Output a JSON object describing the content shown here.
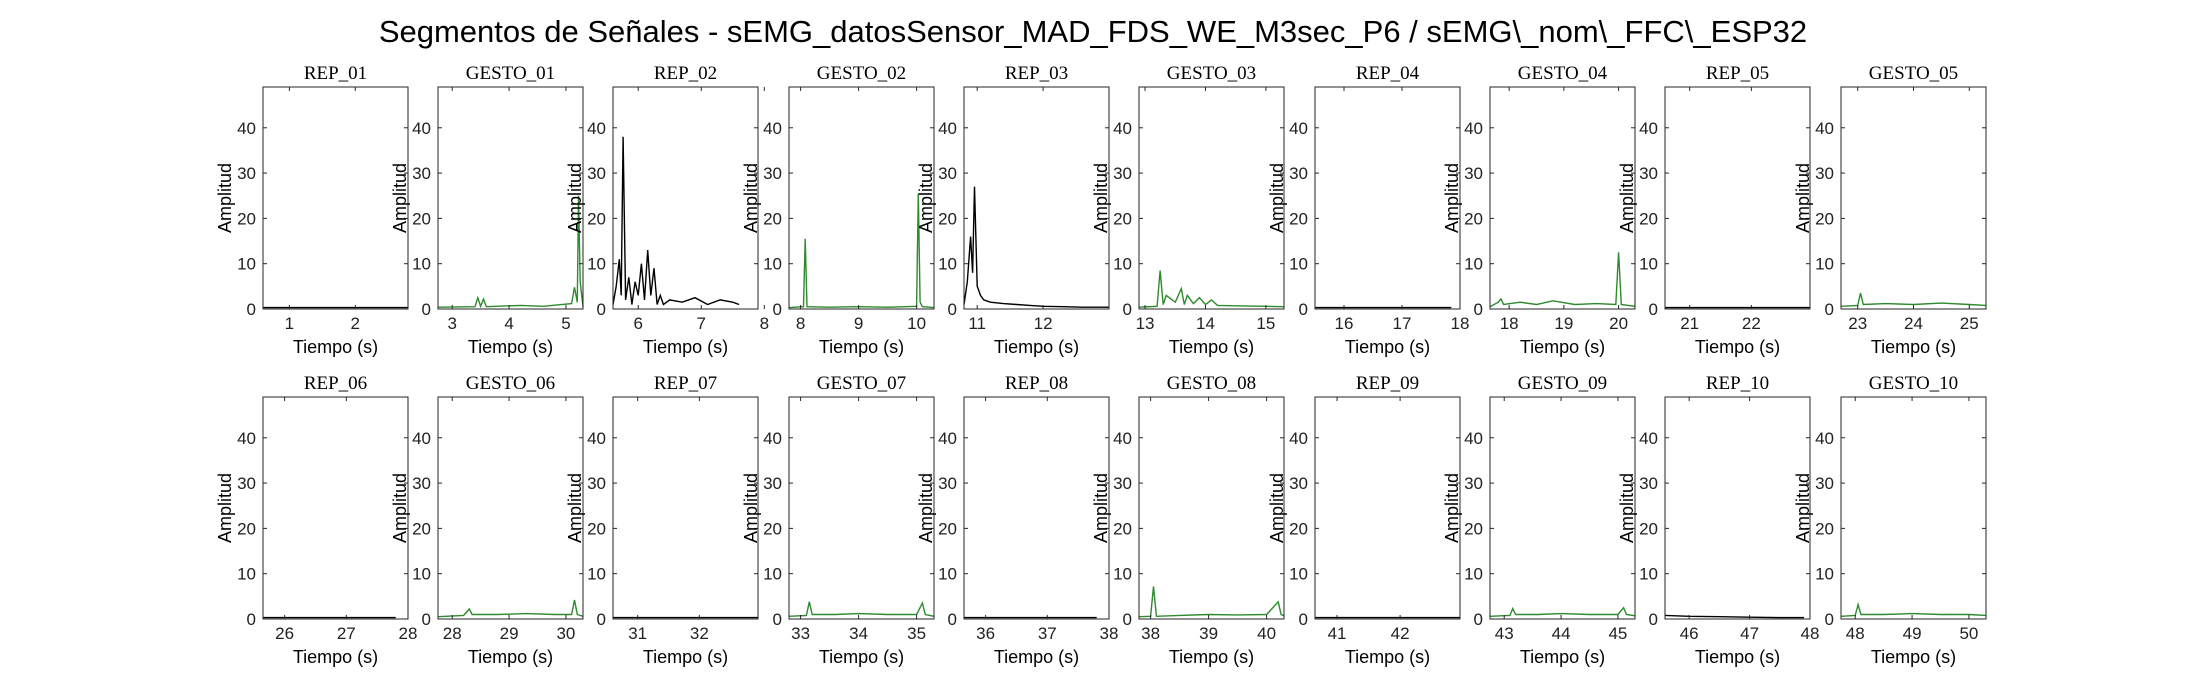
{
  "figure": {
    "title": "Segmentos de Señales - sEMG_datosSensor_MAD_FDS_WE_M3sec_P6 / sEMG\\_nom\\_FFC\\_ESP32"
  },
  "colors": {
    "rep": "#000000",
    "gesto": "#2e8b2e",
    "axis": "#262626"
  },
  "chart_data": [
    {
      "type": "line",
      "title": "REP_01",
      "xlabel": "Tiempo (s)",
      "ylabel": "Amplitud",
      "xlim": [
        0.6,
        2.8
      ],
      "ylim": [
        0,
        49
      ],
      "xticks": [
        1,
        2
      ],
      "yticks": [
        0,
        10,
        20,
        30,
        40
      ],
      "color": "rep",
      "series": [
        {
          "x": [
            0.6,
            2.8
          ],
          "y": [
            0.3,
            0.3
          ]
        }
      ]
    },
    {
      "type": "line",
      "title": "GESTO_01",
      "xlabel": "Tiempo (s)",
      "ylabel": "Amplitud",
      "xlim": [
        2.75,
        5.3
      ],
      "ylim": [
        0,
        49
      ],
      "xticks": [
        3,
        4,
        5
      ],
      "yticks": [
        0,
        10,
        20,
        30,
        40
      ],
      "color": "gesto",
      "series": [
        {
          "x": [
            2.75,
            3.4,
            3.45,
            3.5,
            3.55,
            3.6,
            4.2,
            4.6,
            5.1,
            5.15,
            5.2,
            5.22,
            5.25,
            5.3
          ],
          "y": [
            0.4,
            0.5,
            2.5,
            0.6,
            2.2,
            0.5,
            0.8,
            0.6,
            1.2,
            4.8,
            1.5,
            25,
            6,
            0.5
          ]
        }
      ]
    },
    {
      "type": "line",
      "title": "REP_02",
      "xlabel": "Tiempo (s)",
      "ylabel": "Amplitud",
      "xlim": [
        5.6,
        7.9
      ],
      "ylim": [
        0,
        49
      ],
      "xticks": [
        6,
        7,
        8
      ],
      "yticks": [
        0,
        10,
        20,
        30,
        40
      ],
      "color": "rep",
      "series": [
        {
          "x": [
            5.6,
            5.65,
            5.7,
            5.73,
            5.76,
            5.8,
            5.85,
            5.9,
            5.95,
            6.0,
            6.05,
            6.1,
            6.15,
            6.2,
            6.25,
            6.3,
            6.35,
            6.4,
            6.5,
            6.7,
            6.9,
            7.1,
            7.3,
            7.5,
            7.6
          ],
          "y": [
            1,
            5,
            11,
            3,
            38,
            2,
            7,
            1,
            6,
            3,
            10,
            2,
            13,
            3,
            9,
            1,
            3,
            1,
            2,
            1.5,
            2.5,
            1,
            2,
            1.5,
            1
          ]
        }
      ]
    },
    {
      "type": "line",
      "title": "GESTO_02",
      "xlabel": "Tiempo (s)",
      "ylabel": "Amplitud",
      "xlim": [
        7.8,
        10.3
      ],
      "ylim": [
        0,
        49
      ],
      "xticks": [
        8,
        9,
        10
      ],
      "yticks": [
        0,
        10,
        20,
        30,
        40
      ],
      "color": "gesto",
      "series": [
        {
          "x": [
            7.8,
            8.05,
            8.08,
            8.11,
            8.5,
            9.0,
            9.5,
            10.0,
            10.03,
            10.06,
            10.1,
            10.3
          ],
          "y": [
            0.3,
            0.5,
            15.5,
            0.5,
            0.4,
            0.5,
            0.4,
            0.6,
            25.5,
            1.5,
            0.5,
            0.3
          ]
        }
      ]
    },
    {
      "type": "line",
      "title": "REP_03",
      "xlabel": "Tiempo (s)",
      "ylabel": "Amplitud",
      "xlim": [
        10.8,
        13.0
      ],
      "ylim": [
        0,
        49
      ],
      "xticks": [
        11,
        12
      ],
      "yticks": [
        0,
        10,
        20,
        30,
        40
      ],
      "color": "rep",
      "series": [
        {
          "x": [
            10.8,
            10.85,
            10.9,
            10.93,
            10.96,
            11.0,
            11.05,
            11.1,
            11.2,
            11.4,
            11.6,
            11.8,
            12.0,
            12.3,
            12.6,
            13.0
          ],
          "y": [
            1,
            6,
            16,
            8,
            27,
            5,
            3,
            2,
            1.5,
            1.2,
            1,
            0.8,
            0.6,
            0.5,
            0.4,
            0.4
          ]
        }
      ]
    },
    {
      "type": "line",
      "title": "GESTO_03",
      "xlabel": "Tiempo (s)",
      "ylabel": "Amplitud",
      "xlim": [
        12.9,
        15.3
      ],
      "ylim": [
        0,
        49
      ],
      "xticks": [
        13,
        14,
        15
      ],
      "yticks": [
        0,
        10,
        20,
        30,
        40
      ],
      "color": "gesto",
      "series": [
        {
          "x": [
            12.9,
            13.2,
            13.25,
            13.3,
            13.35,
            13.5,
            13.6,
            13.65,
            13.7,
            13.8,
            13.9,
            14.0,
            14.1,
            14.2,
            14.5,
            15.0,
            15.3
          ],
          "y": [
            0.4,
            0.6,
            8.5,
            1,
            3,
            1.5,
            4.5,
            1,
            3,
            1.2,
            2.5,
            1,
            2,
            0.8,
            0.7,
            0.6,
            0.5
          ]
        }
      ]
    },
    {
      "type": "line",
      "title": "REP_04",
      "xlabel": "Tiempo (s)",
      "ylabel": "Amplitud",
      "xlim": [
        15.5,
        18
      ],
      "ylim": [
        0,
        49
      ],
      "xticks": [
        16,
        17,
        18
      ],
      "yticks": [
        0,
        10,
        20,
        30,
        40
      ],
      "color": "rep",
      "series": [
        {
          "x": [
            15.5,
            17.85
          ],
          "y": [
            0.3,
            0.3
          ]
        }
      ]
    },
    {
      "type": "line",
      "title": "GESTO_04",
      "xlabel": "Tiempo (s)",
      "ylabel": "Amplitud",
      "xlim": [
        17.65,
        20.3
      ],
      "ylim": [
        0,
        49
      ],
      "xticks": [
        18,
        19,
        20
      ],
      "yticks": [
        0,
        10,
        20,
        30,
        40
      ],
      "color": "gesto",
      "series": [
        {
          "x": [
            17.65,
            17.8,
            17.85,
            17.9,
            18.2,
            18.5,
            18.8,
            19.2,
            19.6,
            19.95,
            20.0,
            20.05,
            20.3
          ],
          "y": [
            0.5,
            1.5,
            2.2,
            1,
            1.5,
            1,
            1.8,
            1,
            1.2,
            1,
            12.5,
            1,
            0.6
          ]
        }
      ]
    },
    {
      "type": "line",
      "title": "REP_05",
      "xlabel": "Tiempo (s)",
      "ylabel": "Amplitud",
      "xlim": [
        20.6,
        22.95
      ],
      "ylim": [
        0,
        49
      ],
      "xticks": [
        21,
        22
      ],
      "yticks": [
        0,
        10,
        20,
        30,
        40
      ],
      "color": "rep",
      "series": [
        {
          "x": [
            20.6,
            22.95
          ],
          "y": [
            0.3,
            0.3
          ]
        }
      ]
    },
    {
      "type": "line",
      "title": "GESTO_05",
      "xlabel": "Tiempo (s)",
      "ylabel": "Amplitud",
      "xlim": [
        22.7,
        25.3
      ],
      "ylim": [
        0,
        49
      ],
      "xticks": [
        23,
        24,
        25
      ],
      "yticks": [
        0,
        10,
        20,
        30,
        40
      ],
      "color": "gesto",
      "series": [
        {
          "x": [
            22.7,
            23.0,
            23.05,
            23.1,
            23.5,
            24.0,
            24.5,
            25.0,
            25.3
          ],
          "y": [
            0.6,
            0.8,
            3.5,
            1,
            1.2,
            1,
            1.3,
            1,
            0.8
          ]
        }
      ]
    },
    {
      "type": "line",
      "title": "REP_06",
      "xlabel": "Tiempo (s)",
      "ylabel": "Amplitud",
      "xlim": [
        25.65,
        28
      ],
      "ylim": [
        0,
        49
      ],
      "xticks": [
        26,
        27,
        28
      ],
      "yticks": [
        0,
        10,
        20,
        30,
        40
      ],
      "color": "rep",
      "series": [
        {
          "x": [
            25.65,
            27.8
          ],
          "y": [
            0.3,
            0.3
          ]
        }
      ]
    },
    {
      "type": "line",
      "title": "GESTO_06",
      "xlabel": "Tiempo (s)",
      "ylabel": "Amplitud",
      "xlim": [
        27.75,
        30.3
      ],
      "ylim": [
        0,
        49
      ],
      "xticks": [
        28,
        29,
        30
      ],
      "yticks": [
        0,
        10,
        20,
        30,
        40
      ],
      "color": "gesto",
      "series": [
        {
          "x": [
            27.75,
            28.2,
            28.3,
            28.35,
            28.8,
            29.3,
            29.8,
            30.1,
            30.15,
            30.2,
            30.3
          ],
          "y": [
            0.5,
            0.8,
            2.2,
            1,
            1,
            1.2,
            1,
            1,
            4.2,
            1,
            0.6
          ]
        }
      ]
    },
    {
      "type": "line",
      "title": "REP_07",
      "xlabel": "Tiempo (s)",
      "ylabel": "Amplitud",
      "xlim": [
        30.6,
        32.95
      ],
      "ylim": [
        0,
        49
      ],
      "xticks": [
        31,
        32
      ],
      "yticks": [
        0,
        10,
        20,
        30,
        40
      ],
      "color": "rep",
      "series": [
        {
          "x": [
            30.6,
            32.95
          ],
          "y": [
            0.3,
            0.3
          ]
        }
      ]
    },
    {
      "type": "line",
      "title": "GESTO_07",
      "xlabel": "Tiempo (s)",
      "ylabel": "Amplitud",
      "xlim": [
        32.8,
        35.3
      ],
      "ylim": [
        0,
        49
      ],
      "xticks": [
        33,
        34,
        35
      ],
      "yticks": [
        0,
        10,
        20,
        30,
        40
      ],
      "color": "gesto",
      "series": [
        {
          "x": [
            32.8,
            33.1,
            33.15,
            33.2,
            33.6,
            34.0,
            34.5,
            35.0,
            35.1,
            35.15,
            35.3
          ],
          "y": [
            0.6,
            0.8,
            3.8,
            1,
            1,
            1.2,
            1,
            1,
            3.5,
            1,
            0.6
          ]
        }
      ]
    },
    {
      "type": "line",
      "title": "REP_08",
      "xlabel": "Tiempo (s)",
      "ylabel": "Amplitud",
      "xlim": [
        35.65,
        38
      ],
      "ylim": [
        0,
        49
      ],
      "xticks": [
        36,
        37,
        38
      ],
      "yticks": [
        0,
        10,
        20,
        30,
        40
      ],
      "color": "rep",
      "series": [
        {
          "x": [
            35.65,
            37.8
          ],
          "y": [
            0.3,
            0.3
          ]
        }
      ]
    },
    {
      "type": "line",
      "title": "GESTO_08",
      "xlabel": "Tiempo (s)",
      "ylabel": "Amplitud",
      "xlim": [
        37.8,
        40.3
      ],
      "ylim": [
        0,
        49
      ],
      "xticks": [
        38,
        39,
        40
      ],
      "yticks": [
        0,
        10,
        20,
        30,
        40
      ],
      "color": "gesto",
      "series": [
        {
          "x": [
            37.8,
            38.0,
            38.05,
            38.1,
            38.5,
            39.0,
            39.5,
            40.0,
            40.2,
            40.25,
            40.3
          ],
          "y": [
            0.5,
            0.6,
            7.2,
            0.6,
            0.8,
            1,
            0.9,
            1,
            3.8,
            1,
            0.7
          ]
        }
      ]
    },
    {
      "type": "line",
      "title": "REP_09",
      "xlabel": "Tiempo (s)",
      "ylabel": "Amplitud",
      "xlim": [
        40.65,
        42.95
      ],
      "ylim": [
        0,
        49
      ],
      "xticks": [
        41,
        42
      ],
      "yticks": [
        0,
        10,
        20,
        30,
        40
      ],
      "color": "rep",
      "series": [
        {
          "x": [
            40.65,
            42.95
          ],
          "y": [
            0.3,
            0.3
          ]
        }
      ]
    },
    {
      "type": "line",
      "title": "GESTO_09",
      "xlabel": "Tiempo (s)",
      "ylabel": "Amplitud",
      "xlim": [
        42.75,
        45.3
      ],
      "ylim": [
        0,
        49
      ],
      "xticks": [
        43,
        44,
        45
      ],
      "yticks": [
        0,
        10,
        20,
        30,
        40
      ],
      "color": "gesto",
      "series": [
        {
          "x": [
            42.75,
            43.1,
            43.15,
            43.2,
            43.6,
            44.0,
            44.5,
            45.0,
            45.1,
            45.15,
            45.3
          ],
          "y": [
            0.6,
            0.8,
            2.3,
            1,
            1,
            1.2,
            1,
            1,
            2.5,
            1,
            0.7
          ]
        }
      ]
    },
    {
      "type": "line",
      "title": "REP_10",
      "xlabel": "Tiempo (s)",
      "ylabel": "Amplitud",
      "xlim": [
        45.6,
        48
      ],
      "ylim": [
        0,
        49
      ],
      "xticks": [
        46,
        47,
        48
      ],
      "yticks": [
        0,
        10,
        20,
        30,
        40
      ],
      "color": "rep",
      "series": [
        {
          "x": [
            45.6,
            46.0,
            46.5,
            47.0,
            47.5,
            47.9
          ],
          "y": [
            0.8,
            0.6,
            0.5,
            0.4,
            0.3,
            0.3
          ]
        }
      ]
    },
    {
      "type": "line",
      "title": "GESTO_10",
      "xlabel": "Tiempo (s)",
      "ylabel": "Amplitud",
      "xlim": [
        47.75,
        50.3
      ],
      "ylim": [
        0,
        49
      ],
      "xticks": [
        48,
        49,
        50
      ],
      "yticks": [
        0,
        10,
        20,
        30,
        40
      ],
      "color": "gesto",
      "series": [
        {
          "x": [
            47.75,
            48.0,
            48.05,
            48.1,
            48.5,
            49.0,
            49.5,
            50.0,
            50.3
          ],
          "y": [
            0.6,
            0.8,
            3.2,
            1,
            1,
            1.2,
            1,
            1,
            0.8
          ]
        }
      ]
    }
  ]
}
